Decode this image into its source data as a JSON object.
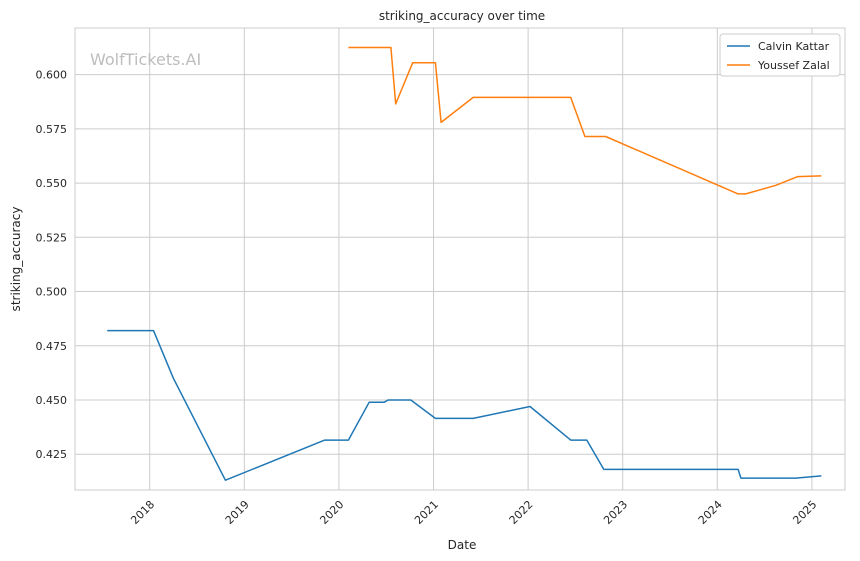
{
  "chart_data": {
    "type": "line",
    "title": "striking_accuracy over time",
    "xlabel": "Date",
    "ylabel": "striking_accuracy",
    "watermark": "WolfTickets.AI",
    "xlim": [
      2017.21,
      2025.35
    ],
    "ylim": [
      0.4085,
      0.6215
    ],
    "x_ticks": [
      2018,
      2019,
      2020,
      2021,
      2022,
      2023,
      2024,
      2025
    ],
    "x_tick_labels": [
      "2018",
      "2019",
      "2020",
      "2021",
      "2022",
      "2023",
      "2024",
      "2025"
    ],
    "y_ticks": [
      0.425,
      0.45,
      0.475,
      0.5,
      0.525,
      0.55,
      0.575,
      0.6
    ],
    "y_tick_labels": [
      "0.425",
      "0.450",
      "0.475",
      "0.500",
      "0.525",
      "0.550",
      "0.575",
      "0.600"
    ],
    "grid": true,
    "legend_position": "top-right",
    "series": [
      {
        "name": "Calvin Kattar",
        "color": "#1f77b4",
        "points": [
          [
            2017.55,
            0.482
          ],
          [
            2018.04,
            0.482
          ],
          [
            2018.25,
            0.46
          ],
          [
            2018.8,
            0.413
          ],
          [
            2019.85,
            0.4315
          ],
          [
            2020.1,
            0.4315
          ],
          [
            2020.32,
            0.449
          ],
          [
            2020.48,
            0.449
          ],
          [
            2020.52,
            0.45
          ],
          [
            2020.76,
            0.45
          ],
          [
            2021.02,
            0.4415
          ],
          [
            2021.42,
            0.4415
          ],
          [
            2022.02,
            0.447
          ],
          [
            2022.45,
            0.4315
          ],
          [
            2022.62,
            0.4315
          ],
          [
            2022.8,
            0.418
          ],
          [
            2024.22,
            0.418
          ],
          [
            2024.25,
            0.414
          ],
          [
            2024.83,
            0.414
          ],
          [
            2025.1,
            0.415
          ]
        ]
      },
      {
        "name": "Youssef Zalal",
        "color": "#ff7f0e",
        "points": [
          [
            2020.1,
            0.6125
          ],
          [
            2020.55,
            0.6125
          ],
          [
            2020.6,
            0.5865
          ],
          [
            2020.78,
            0.6055
          ],
          [
            2021.02,
            0.6055
          ],
          [
            2021.08,
            0.578
          ],
          [
            2021.42,
            0.5895
          ],
          [
            2022.45,
            0.5895
          ],
          [
            2022.6,
            0.5715
          ],
          [
            2022.82,
            0.5715
          ],
          [
            2024.22,
            0.545
          ],
          [
            2024.3,
            0.545
          ],
          [
            2024.62,
            0.549
          ],
          [
            2024.85,
            0.553
          ],
          [
            2025.1,
            0.5533
          ]
        ]
      }
    ]
  }
}
